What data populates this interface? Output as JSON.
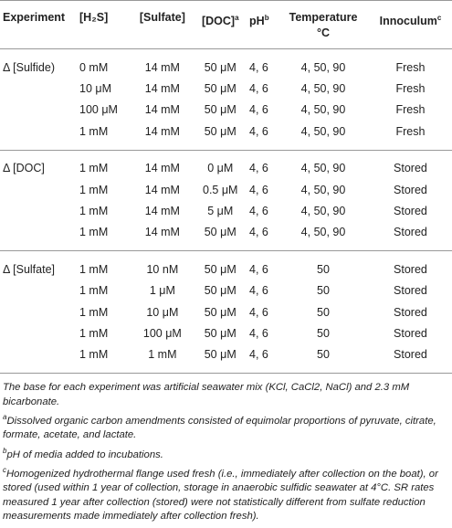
{
  "table": {
    "columns": [
      {
        "label": "Experiment"
      },
      {
        "label": "[H₂S]"
      },
      {
        "label": "[Sulfate]"
      },
      {
        "label": "[DOC]",
        "note": "a"
      },
      {
        "label": "pH",
        "note": "b"
      },
      {
        "label": "Temperature",
        "unit": "°C"
      },
      {
        "label": "Innoculum",
        "note": "c"
      }
    ],
    "groups": [
      {
        "experiment": "Δ [Sulfide)",
        "rows": [
          [
            "0 mM",
            "14 mM",
            "50 μM",
            "4, 6",
            "4, 50, 90",
            "Fresh"
          ],
          [
            "10 μM",
            "14 mM",
            "50 μM",
            "4, 6",
            "4, 50, 90",
            "Fresh"
          ],
          [
            "100 μM",
            "14 mM",
            "50 μM",
            "4, 6",
            "4, 50, 90",
            "Fresh"
          ],
          [
            "1 mM",
            "14 mM",
            "50 μM",
            "4, 6",
            "4, 50, 90",
            "Fresh"
          ]
        ]
      },
      {
        "experiment": "Δ [DOC]",
        "rows": [
          [
            "1 mM",
            "14 mM",
            "0 μM",
            "4, 6",
            "4, 50, 90",
            "Stored"
          ],
          [
            "1 mM",
            "14 mM",
            "0.5 μM",
            "4, 6",
            "4, 50, 90",
            "Stored"
          ],
          [
            "1 mM",
            "14 mM",
            "5 μM",
            "4, 6",
            "4, 50, 90",
            "Stored"
          ],
          [
            "1 mM",
            "14 mM",
            "50 μM",
            "4, 6",
            "4, 50, 90",
            "Stored"
          ]
        ]
      },
      {
        "experiment": "Δ [Sulfate]",
        "rows": [
          [
            "1 mM",
            "10 nM",
            "50 μM",
            "4, 6",
            "50",
            "Stored"
          ],
          [
            "1 mM",
            "1 μM",
            "50 μM",
            "4, 6",
            "50",
            "Stored"
          ],
          [
            "1 mM",
            "10 μM",
            "50 μM",
            "4, 6",
            "50",
            "Stored"
          ],
          [
            "1 mM",
            "100 μM",
            "50 μM",
            "4, 6",
            "50",
            "Stored"
          ],
          [
            "1 mM",
            "1 mM",
            "50 μM",
            "4, 6",
            "50",
            "Stored"
          ]
        ]
      }
    ]
  },
  "footnotes": {
    "main": "The base for each experiment was artificial seawater mix (KCl, CaCl2, NaCl) and 2.3 mM bicarbonate.",
    "notes": [
      {
        "mark": "a",
        "text": "Dissolved organic carbon amendments consisted of equimolar proportions of pyruvate, citrate, formate, acetate, and lactate."
      },
      {
        "mark": "b",
        "text": "pH of media added to incubations."
      },
      {
        "mark": "c",
        "text": "Homogenized hydrothermal flange used fresh (i.e., immediately after collection on the boat), or stored (used within 1 year of collection, storage in anaerobic sulfidic seawater at 4°C. SR rates measured 1 year after collection (stored) were not statistically different from sulfate reduction measurements made immediately after collection fresh)."
      }
    ]
  }
}
